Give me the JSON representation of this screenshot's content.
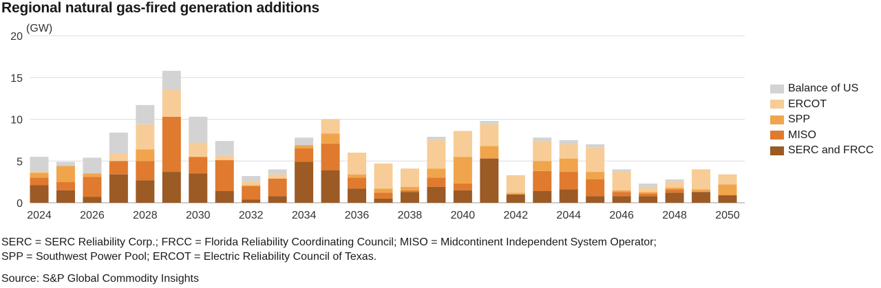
{
  "title": "Regional natural gas-fired generation additions",
  "notes": [
    "SERC = SERC Reliability Corp.; FRCC = Florida Reliability Coordinating Council; MISO = Midcontinent Independent System Operator;",
    "SPP = Southwest Power Pool; ERCOT = Electric Reliability Council of Texas."
  ],
  "source": "Source: S&P Global Commodity Insights",
  "chart_data": {
    "type": "bar",
    "stacked": true,
    "ylabel": "(GW)",
    "ylim": [
      0,
      20
    ],
    "yticks": [
      0,
      5,
      10,
      15,
      20
    ],
    "xticks": [
      "2024",
      "2026",
      "2028",
      "2030",
      "2032",
      "2034",
      "2036",
      "2038",
      "2040",
      "2042",
      "2044",
      "2046",
      "2048",
      "2050"
    ],
    "grid": true,
    "legend_position": "right",
    "categories": [
      "2024",
      "2025",
      "2026",
      "2027",
      "2028",
      "2029",
      "2030",
      "2031",
      "2032",
      "2033",
      "2034",
      "2035",
      "2036",
      "2037",
      "2038",
      "2039",
      "2040",
      "2041",
      "2042",
      "2043",
      "2044",
      "2045",
      "2046",
      "2047",
      "2048",
      "2049",
      "2050"
    ],
    "series": [
      {
        "name": "SERC and FRCC",
        "color": "#9c5a25",
        "values": [
          2.1,
          1.5,
          0.7,
          3.4,
          2.7,
          3.7,
          3.5,
          1.4,
          0.4,
          0.8,
          4.9,
          3.9,
          1.7,
          0.5,
          1.3,
          1.9,
          1.5,
          5.3,
          1.0,
          1.4,
          1.6,
          0.8,
          0.8,
          0.8,
          1.2,
          1.3,
          0.9
        ]
      },
      {
        "name": "MISO",
        "color": "#e07a2e",
        "values": [
          0.9,
          1.0,
          2.4,
          1.6,
          2.3,
          6.6,
          2.0,
          3.7,
          1.6,
          2.1,
          1.6,
          3.2,
          1.3,
          0.7,
          0.2,
          1.1,
          0.8,
          0.0,
          0.0,
          2.4,
          2.1,
          2.0,
          0.5,
          0.3,
          0.4,
          0.0,
          0.0
        ]
      },
      {
        "name": "SPP",
        "color": "#f0a54c",
        "values": [
          0.6,
          1.9,
          0.4,
          0.0,
          1.4,
          0.0,
          0.0,
          0.0,
          0.1,
          0.0,
          0.4,
          1.2,
          0.4,
          0.5,
          0.4,
          1.1,
          3.2,
          1.5,
          0.2,
          1.2,
          1.6,
          0.9,
          0.2,
          0.2,
          0.2,
          0.3,
          1.3
        ]
      },
      {
        "name": "ERCOT",
        "color": "#f7cc97",
        "values": [
          0.2,
          0.0,
          0.0,
          0.9,
          3.0,
          3.2,
          1.7,
          0.6,
          0.5,
          0.5,
          0.0,
          1.7,
          2.6,
          3.0,
          2.2,
          3.4,
          3.1,
          2.6,
          2.1,
          2.4,
          1.7,
          2.9,
          2.2,
          0.6,
          0.7,
          2.4,
          1.2
        ]
      },
      {
        "name": "Balance of US",
        "color": "#d3d3d3",
        "values": [
          1.7,
          0.5,
          1.9,
          2.5,
          2.3,
          2.3,
          3.1,
          1.7,
          0.6,
          0.6,
          0.9,
          0.0,
          0.0,
          0.0,
          0.0,
          0.4,
          0.0,
          0.4,
          0.0,
          0.4,
          0.5,
          0.4,
          0.3,
          0.4,
          0.3,
          0.0,
          0.0
        ]
      }
    ]
  }
}
